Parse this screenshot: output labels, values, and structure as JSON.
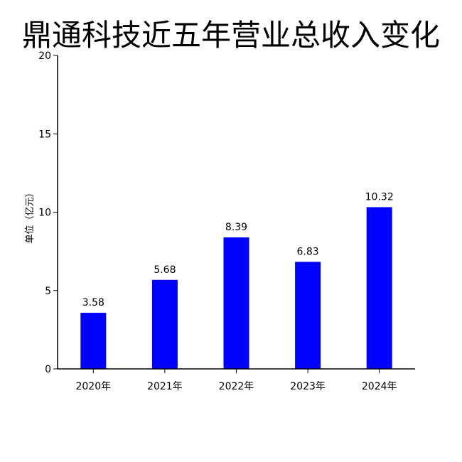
{
  "chart_data": {
    "type": "bar",
    "title": "鼎通科技近五年营业总收入变化",
    "xlabel": "",
    "ylabel": "单位（亿元）",
    "categories": [
      "2020年",
      "2021年",
      "2022年",
      "2023年",
      "2024年"
    ],
    "values": [
      3.58,
      5.68,
      8.39,
      6.83,
      10.32
    ],
    "data_labels": [
      "3.58",
      "5.68",
      "8.39",
      "6.83",
      "10.32"
    ],
    "ylim": [
      0,
      20
    ],
    "yticks": [
      0,
      5,
      10,
      15,
      20
    ],
    "ytick_labels": [
      "0",
      "5",
      "10",
      "15",
      "20"
    ],
    "grid": false,
    "legend": "none",
    "bar_color": "#0000ff",
    "axis_color": "#000000"
  }
}
